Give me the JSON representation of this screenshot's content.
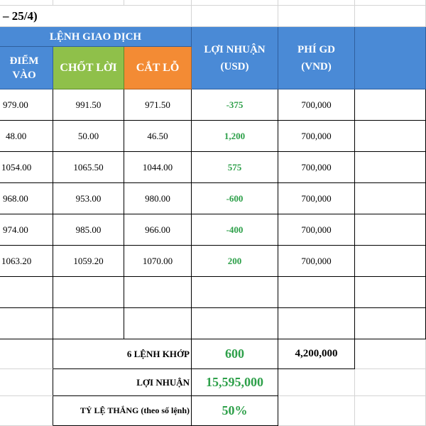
{
  "period_title": "– 25/4)",
  "header": {
    "group": "LỆNH GIAO DỊCH",
    "entry_line1": "ĐIỂM",
    "entry_line2": "VÀO",
    "take_profit": "CHỐT LỜI",
    "stop_loss": "CẮT LỖ",
    "profit_line1": "LỢI NHUẬN",
    "profit_line2": "(USD)",
    "fee_line1": "PHÍ GD",
    "fee_line2": "(VND)"
  },
  "rows": [
    {
      "entry": "979.00",
      "tp": "991.50",
      "sl": "971.50",
      "profit": "-375",
      "fee": "700,000"
    },
    {
      "entry": "48.00",
      "tp": "50.00",
      "sl": "46.50",
      "profit": "1,200",
      "fee": "700,000"
    },
    {
      "entry": "1054.00",
      "tp": "1065.50",
      "sl": "1044.00",
      "profit": "575",
      "fee": "700,000"
    },
    {
      "entry": "968.00",
      "tp": "953.00",
      "sl": "980.00",
      "profit": "-600",
      "fee": "700,000"
    },
    {
      "entry": "974.00",
      "tp": "985.00",
      "sl": "966.00",
      "profit": "-400",
      "fee": "700,000"
    },
    {
      "entry": "1063.20",
      "tp": "1059.20",
      "sl": "1070.00",
      "profit": "200",
      "fee": "700,000"
    }
  ],
  "summary": {
    "orders_label": "6 LỆNH KHỚP",
    "orders_profit": "600",
    "orders_fee": "4,200,000",
    "profit_label": "LỢI NHUẬN",
    "profit_value": "15,595,000",
    "winrate_label": "TỶ LỆ THẮNG (theo số lệnh)",
    "winrate_value": "50%"
  },
  "colors": {
    "header_blue": "#4a8ad6",
    "header_green": "#8fc04a",
    "header_orange": "#f38b34",
    "profit_green": "#2ea04a"
  }
}
